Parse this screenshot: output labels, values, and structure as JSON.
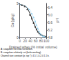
{
  "chart_data": {
    "type": "line",
    "xlabel": "Drained whey (% initial volume)",
    "ylabel": "Ca (g/kg)",
    "y2label": "pH",
    "xlim": [
      0,
      100
    ],
    "xticks": [
      0,
      20,
      40,
      60,
      80,
      100
    ],
    "ylim": [
      0,
      5
    ],
    "yticks": [
      0,
      5
    ],
    "y2lim": [
      4.8,
      6.6
    ],
    "y2ticks": [
      {
        "value": 4.8,
        "label": "4.8"
      },
      {
        "value": 5.2,
        "label": "5.2"
      },
      {
        "value": 5.6,
        "label": "5.6"
      },
      {
        "value": 6.0,
        "label": "6.0"
      },
      {
        "value": 6.4,
        "label": "6.4"
      }
    ],
    "grid": false,
    "series": [
      {
        "type": "line",
        "line_style": "solid",
        "color": "#222222",
        "x": [
          0,
          5,
          10,
          15,
          20,
          25,
          30,
          35,
          40,
          45,
          50,
          55,
          60,
          65,
          70,
          75,
          80,
          85,
          90,
          95,
          100
        ],
        "values": [
          4.85,
          4.82,
          4.78,
          4.72,
          4.6,
          4.42,
          4.15,
          3.8,
          3.35,
          2.85,
          2.35,
          1.88,
          1.42,
          1.05,
          0.76,
          0.55,
          0.4,
          0.3,
          0.23,
          0.18,
          0.15
        ]
      },
      {
        "type": "scatter",
        "marker": "square",
        "color": "#222222",
        "x": [
          8,
          18,
          28,
          38,
          45,
          52,
          58,
          63,
          68,
          73,
          78,
          83
        ],
        "values": [
          4.7,
          4.55,
          4.1,
          3.3,
          2.75,
          2.1,
          1.55,
          1.15,
          0.82,
          0.58,
          0.42,
          0.32
        ]
      },
      {
        "type": "line",
        "line_style": "dotted",
        "color": "#88ccee",
        "axis": "y2",
        "x": [
          0,
          5,
          10,
          15,
          20,
          25,
          30,
          35,
          40,
          45,
          50,
          55,
          60,
          65,
          70,
          75,
          80,
          85,
          90,
          95,
          100
        ],
        "values": [
          6.55,
          6.53,
          6.51,
          6.49,
          6.46,
          6.43,
          6.38,
          6.3,
          6.2,
          6.07,
          5.92,
          5.75,
          5.57,
          5.38,
          5.2,
          5.05,
          4.95,
          4.88,
          4.85,
          4.83,
          4.82
        ]
      },
      {
        "type": "scatter",
        "marker": "square",
        "color": "#88ccee",
        "axis": "y2",
        "x": [
          35,
          45,
          52,
          58,
          62,
          67,
          72,
          77,
          82,
          87,
          92
        ],
        "values": [
          6.28,
          6.05,
          5.85,
          5.65,
          5.45,
          5.28,
          5.12,
          4.99,
          4.91,
          4.86,
          4.83
        ]
      }
    ],
    "annotations": [
      "A: coagulum not intact at bottom.",
      "B: coagulum relatively cut (knife-working).",
      "Channel size constant (p. top *): 4-5 1.0-2.0 1.1 b."
    ]
  }
}
